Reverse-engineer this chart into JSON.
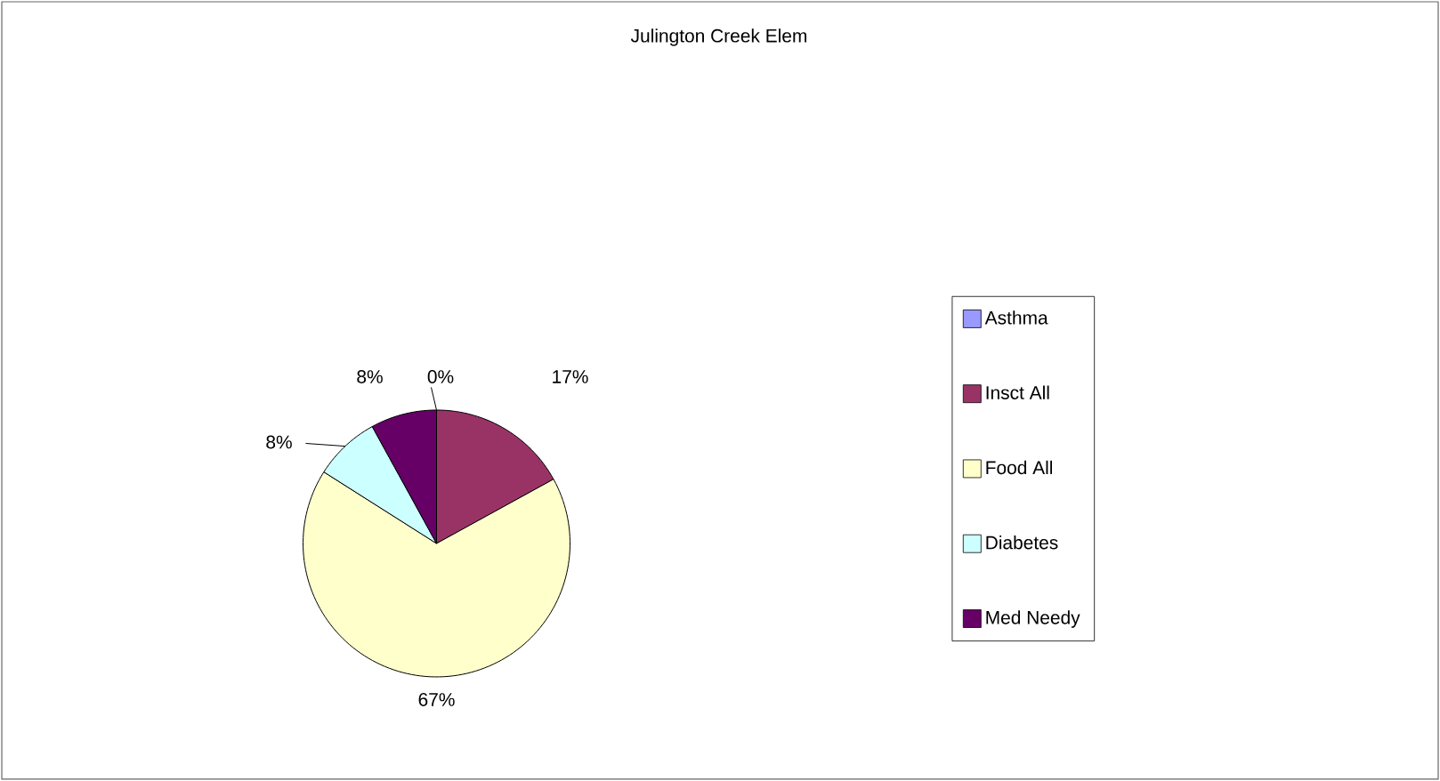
{
  "chart_data": {
    "type": "pie",
    "title": "Julington Creek Elem",
    "categories": [
      "Asthma",
      "Insct All",
      "Food All",
      "Diabetes",
      "Med Needy"
    ],
    "values": [
      0,
      17,
      67,
      8,
      8
    ],
    "value_labels": [
      "0%",
      "17%",
      "67%",
      "8%",
      "8%"
    ],
    "colors": [
      "#9999ff",
      "#993366",
      "#ffffcc",
      "#ccffff",
      "#660066"
    ],
    "legend": "right"
  }
}
